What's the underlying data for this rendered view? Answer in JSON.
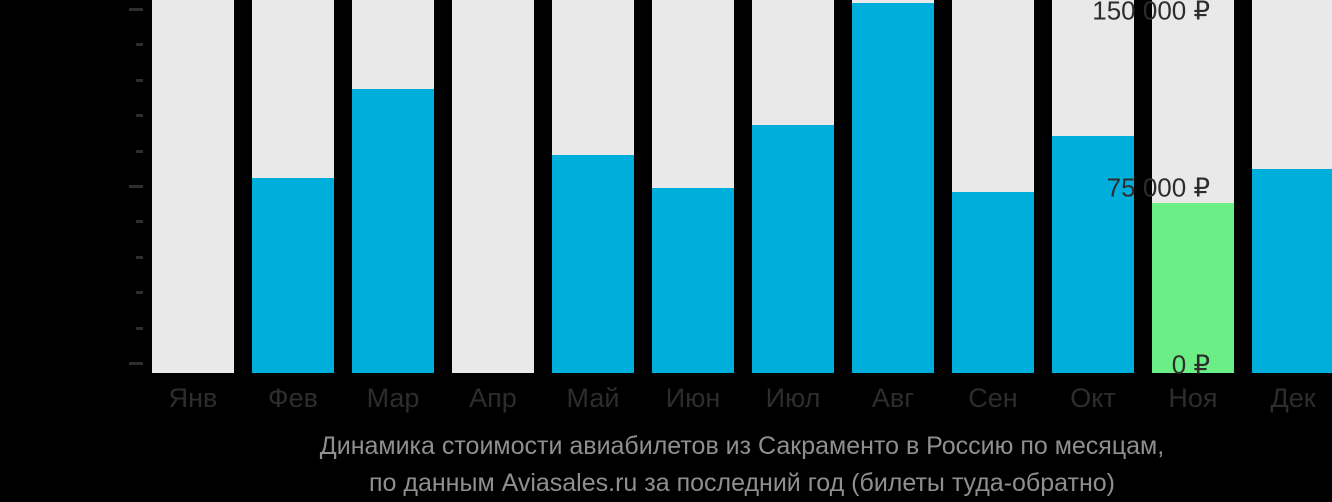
{
  "page": {
    "background": "#000000"
  },
  "chart_data": {
    "type": "bar",
    "title": "Динамика стоимости авиабилетов из Сакраменто в Россию по месяцам, по данным Aviasales.ru за последний год (билеты туда-обратно)",
    "caption_lines": [
      "Динамика стоимости авиабилетов из Сакраменто в Россию по месяцам,",
      "по данным Aviasales.ru за последний год (билеты туда-обратно)"
    ],
    "categories": [
      "Янв",
      "Фев",
      "Мар",
      "Апр",
      "Май",
      "Июн",
      "Июл",
      "Авг",
      "Сен",
      "Окт",
      "Ноя",
      "Дек"
    ],
    "values": [
      null,
      78500,
      116000,
      null,
      88000,
      74000,
      101000,
      152500,
      72500,
      96000,
      68000,
      82000
    ],
    "highlight_index": 10,
    "highlight_category": "Ноя",
    "currency_symbol": "₽",
    "xlabel": "",
    "ylabel": "",
    "ylim": [
      0,
      150000
    ],
    "y_major_ticks": [
      {
        "value": 150000,
        "label": "150 000 ₽"
      },
      {
        "value": 75000,
        "label": "75 000 ₽"
      },
      {
        "value": 0,
        "label": "0 ₽"
      }
    ],
    "y_minor_tick_step": 15000,
    "grid": false,
    "legend": false,
    "colors": {
      "bar": "#00AEDC",
      "highlight_bar": "#6CEE87",
      "placeholder_bar": "#E9E9E9",
      "axis_text": "#2D2D2D",
      "tick": "#2D2D2D",
      "caption_text": "#8F8F8F",
      "background": "#000000"
    }
  }
}
